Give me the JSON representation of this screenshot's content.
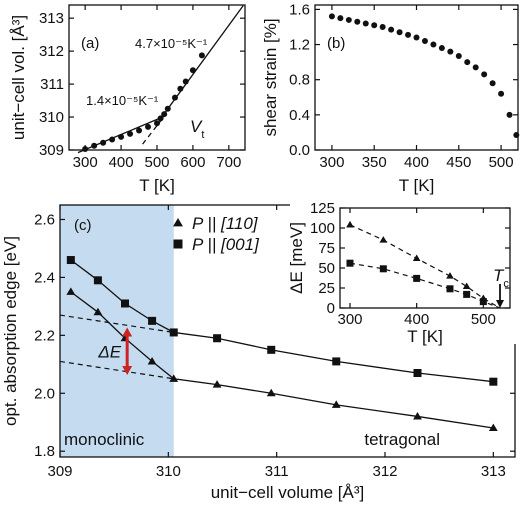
{
  "chart_data": [
    {
      "type": "scatter",
      "panel_label": "(a)",
      "xlabel": "T [K]",
      "ylabel": "unit−cell vol. [Å³]",
      "xlim": [
        255,
        745
      ],
      "ylim": [
        309,
        313.4
      ],
      "xticks": [
        300,
        400,
        500,
        600,
        700
      ],
      "yticks": [
        309,
        310,
        311,
        312,
        313
      ],
      "grid": false,
      "x": [
        300,
        325,
        350,
        375,
        400,
        425,
        450,
        475,
        500,
        510,
        520,
        530,
        550,
        565,
        580,
        600,
        625
      ],
      "y": [
        309.03,
        309.13,
        309.22,
        309.32,
        309.4,
        309.49,
        309.59,
        309.7,
        309.81,
        309.96,
        310.09,
        310.25,
        310.59,
        310.86,
        311.08,
        311.42,
        311.87
      ],
      "fit_lines": [
        {
          "x": [
            280,
            520
          ],
          "y": [
            308.92,
            310.02
          ]
        },
        {
          "x": [
            510,
            740
          ],
          "y": [
            309.95,
            313.38
          ]
        },
        {
          "x": [
            460,
            520
          ],
          "y": [
            309.18,
            310.02
          ],
          "style": "dashed"
        }
      ],
      "annotations": [
        {
          "text": "4.7×10⁻⁵K⁻¹"
        },
        {
          "text": "1.4×10⁻⁵K⁻¹"
        },
        {
          "text": "V",
          "subscript": "t"
        }
      ]
    },
    {
      "type": "scatter",
      "panel_label": "(b)",
      "xlabel": "T [K]",
      "ylabel": "shear strain [%]",
      "xlim": [
        280,
        520
      ],
      "ylim": [
        0.0,
        1.65
      ],
      "xticks": [
        300,
        350,
        400,
        450,
        500
      ],
      "yticks": [
        0.0,
        0.4,
        0.8,
        1.2,
        1.6
      ],
      "ytick_labels": [
        "0.0",
        "0.4",
        "0.8",
        "1.2",
        "1.6"
      ],
      "grid": false,
      "x": [
        300,
        310,
        320,
        330,
        340,
        350,
        360,
        370,
        380,
        390,
        400,
        410,
        420,
        430,
        440,
        450,
        460,
        470,
        480,
        490,
        500,
        510,
        518
      ],
      "y": [
        1.52,
        1.5,
        1.48,
        1.46,
        1.44,
        1.42,
        1.4,
        1.37,
        1.34,
        1.31,
        1.28,
        1.24,
        1.2,
        1.16,
        1.12,
        1.07,
        1.0,
        0.94,
        0.86,
        0.76,
        0.64,
        0.4,
        0.17
      ]
    },
    {
      "type": "line",
      "panel_label": "(c)",
      "xlabel": "unit−cell volume [Å³]",
      "ylabel": "opt. absorption edge [eV]",
      "xlim": [
        309.0,
        313.2
      ],
      "ylim": [
        1.78,
        2.65
      ],
      "xticks": [
        309,
        310,
        311,
        312,
        313
      ],
      "yticks": [
        1.8,
        2.0,
        2.2,
        2.4,
        2.6
      ],
      "ytick_labels": [
        "1.8",
        "2.0",
        "2.2",
        "2.4",
        "2.6"
      ],
      "grid": false,
      "shaded_region": {
        "x": [
          309.0,
          310.05
        ],
        "label": "monoclinic",
        "color": "#c5dcf0"
      },
      "region_label_right": "tetragonal",
      "legend": {
        "placement": "top-center"
      },
      "series": [
        {
          "name": "P || [̅1̄ 10]",
          "legend_text": "P || [110]",
          "marker": "triangle",
          "x": [
            309.1,
            309.35,
            309.6,
            309.85,
            310.05,
            310.45,
            310.95,
            311.55,
            312.3,
            313.0
          ],
          "y": [
            2.35,
            2.28,
            2.19,
            2.11,
            2.05,
            2.03,
            2.0,
            1.96,
            1.92,
            1.88
          ]
        },
        {
          "name": "P || [001]",
          "legend_text": "P || [001]",
          "marker": "square",
          "x": [
            309.1,
            309.35,
            309.6,
            309.85,
            310.05,
            310.45,
            310.95,
            311.55,
            312.3,
            313.0
          ],
          "y": [
            2.46,
            2.39,
            2.31,
            2.25,
            2.21,
            2.19,
            2.15,
            2.11,
            2.07,
            2.04
          ]
        }
      ],
      "extrapolations": [
        {
          "x": [
            309.0,
            310.05
          ],
          "y": [
            2.27,
            2.21
          ]
        },
        {
          "x": [
            309.0,
            310.05
          ],
          "y": [
            2.11,
            2.05
          ]
        }
      ],
      "delta_annotation": {
        "text": "ΔE",
        "x": 309.62,
        "y_from": 2.22,
        "y_to": 2.07,
        "color": "#cc2222"
      }
    },
    {
      "type": "line",
      "inset": true,
      "xlabel": "T [K]",
      "ylabel": "ΔE [meV]",
      "xlim": [
        285,
        540
      ],
      "ylim": [
        0,
        125
      ],
      "xticks": [
        300,
        400,
        500
      ],
      "yticks": [
        0,
        25,
        50,
        75,
        100,
        125
      ],
      "grid": false,
      "series": [
        {
          "name": "",
          "marker": "triangle",
          "x": [
            300,
            350,
            400,
            450,
            475,
            500
          ],
          "y": [
            104,
            85,
            62,
            40,
            27,
            12
          ]
        },
        {
          "name": "",
          "marker": "square",
          "x": [
            300,
            350,
            400,
            450,
            475,
            500
          ],
          "y": [
            56,
            49,
            37,
            24,
            17,
            8
          ]
        }
      ],
      "tc_annotation": {
        "text": "T",
        "subscript": "c",
        "x": 525
      }
    }
  ]
}
